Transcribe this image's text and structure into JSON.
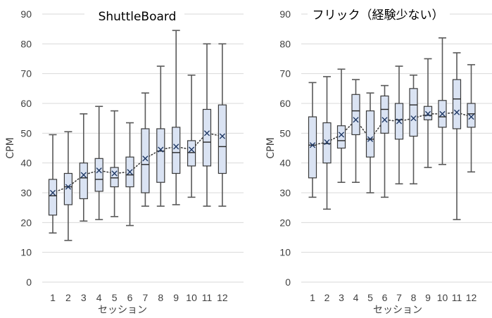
{
  "chart_data": [
    {
      "type": "box",
      "title": "ShuttleBoard",
      "xlabel": "セッション",
      "ylabel": "CPM",
      "ylim": [
        0,
        90
      ],
      "yticks": [
        0,
        10,
        20,
        30,
        40,
        50,
        60,
        70,
        80,
        90
      ],
      "categories": [
        "1",
        "2",
        "3",
        "4",
        "5",
        "6",
        "7",
        "8",
        "9",
        "10",
        "11",
        "12"
      ],
      "grid": true,
      "colors": {
        "box_fill": "#dae3f3",
        "box_edge": "#3a3a3a",
        "mean_marker": "#1f3864",
        "gridline": "#d9d9d9"
      },
      "boxes": [
        {
          "min": 16.5,
          "q1": 22.5,
          "median": 29,
          "q3": 34.5,
          "max": 49.5,
          "mean": 30
        },
        {
          "min": 14,
          "q1": 26,
          "median": 32,
          "q3": 36.5,
          "max": 50.5,
          "mean": 32
        },
        {
          "min": 20.5,
          "q1": 28,
          "median": 35,
          "q3": 40,
          "max": 56.5,
          "mean": 36
        },
        {
          "min": 21,
          "q1": 30.5,
          "median": 34.5,
          "q3": 41.5,
          "max": 59,
          "mean": 37.5
        },
        {
          "min": 22,
          "q1": 32,
          "median": 35,
          "q3": 38.5,
          "max": 57.5,
          "mean": 36.5
        },
        {
          "min": 19,
          "q1": 32,
          "median": 36,
          "q3": 42,
          "max": 53.5,
          "mean": 37
        },
        {
          "min": 25.5,
          "q1": 30,
          "median": 39.5,
          "q3": 51.5,
          "max": 63.5,
          "mean": 41.5
        },
        {
          "min": 25.5,
          "q1": 33.5,
          "median": 44,
          "q3": 51.5,
          "max": 72.5,
          "mean": 44.5
        },
        {
          "min": 26,
          "q1": 36.5,
          "median": 43.5,
          "q3": 52,
          "max": 84.5,
          "mean": 45.5
        },
        {
          "min": 28.5,
          "q1": 39,
          "median": 43.5,
          "q3": 47.5,
          "max": 69.5,
          "mean": 44.5
        },
        {
          "min": 25.5,
          "q1": 39,
          "median": 47,
          "q3": 58,
          "max": 80,
          "mean": 50
        },
        {
          "min": 25.5,
          "q1": 36.5,
          "median": 45.5,
          "q3": 59.5,
          "max": 80,
          "mean": 49
        }
      ]
    },
    {
      "type": "box",
      "title": "フリック（経験少ない）",
      "xlabel": "セッション",
      "ylabel": "CPM",
      "ylim": [
        0,
        90
      ],
      "yticks": [
        0,
        10,
        20,
        30,
        40,
        50,
        60,
        70,
        80,
        90
      ],
      "categories": [
        "1",
        "2",
        "3",
        "4",
        "5",
        "6",
        "7",
        "8",
        "9",
        "10",
        "11",
        "12"
      ],
      "grid": true,
      "colors": {
        "box_fill": "#dae3f3",
        "box_edge": "#3a3a3a",
        "mean_marker": "#1f3864",
        "gridline": "#d9d9d9"
      },
      "boxes": [
        {
          "min": 28.5,
          "q1": 35,
          "median": 46,
          "q3": 55.5,
          "max": 67,
          "mean": 46
        },
        {
          "min": 24.5,
          "q1": 40,
          "median": 46.5,
          "q3": 53.5,
          "max": 69,
          "mean": 47
        },
        {
          "min": 33.5,
          "q1": 45,
          "median": 47.5,
          "q3": 52.5,
          "max": 71.5,
          "mean": 49.5
        },
        {
          "min": 33.5,
          "q1": 49.5,
          "median": 57.5,
          "q3": 63,
          "max": 68,
          "mean": 54.5
        },
        {
          "min": 30,
          "q1": 42,
          "median": 48,
          "q3": 57.5,
          "max": 63.5,
          "mean": 48
        },
        {
          "min": 28.5,
          "q1": 50,
          "median": 58,
          "q3": 62.5,
          "max": 66,
          "mean": 54.5
        },
        {
          "min": 33,
          "q1": 48,
          "median": 54.5,
          "q3": 60,
          "max": 72.5,
          "mean": 54
        },
        {
          "min": 33,
          "q1": 49,
          "median": 59.5,
          "q3": 65,
          "max": 69.5,
          "mean": 55
        },
        {
          "min": 38.5,
          "q1": 54.5,
          "median": 56,
          "q3": 59,
          "max": 75,
          "mean": 56.5
        },
        {
          "min": 39.5,
          "q1": 52,
          "median": 55.5,
          "q3": 61,
          "max": 82,
          "mean": 56.5
        },
        {
          "min": 21,
          "q1": 51.5,
          "median": 61.5,
          "q3": 68,
          "max": 77,
          "mean": 57
        },
        {
          "min": 37,
          "q1": 52,
          "median": 56.5,
          "q3": 60,
          "max": 73,
          "mean": 55.5
        }
      ]
    }
  ]
}
